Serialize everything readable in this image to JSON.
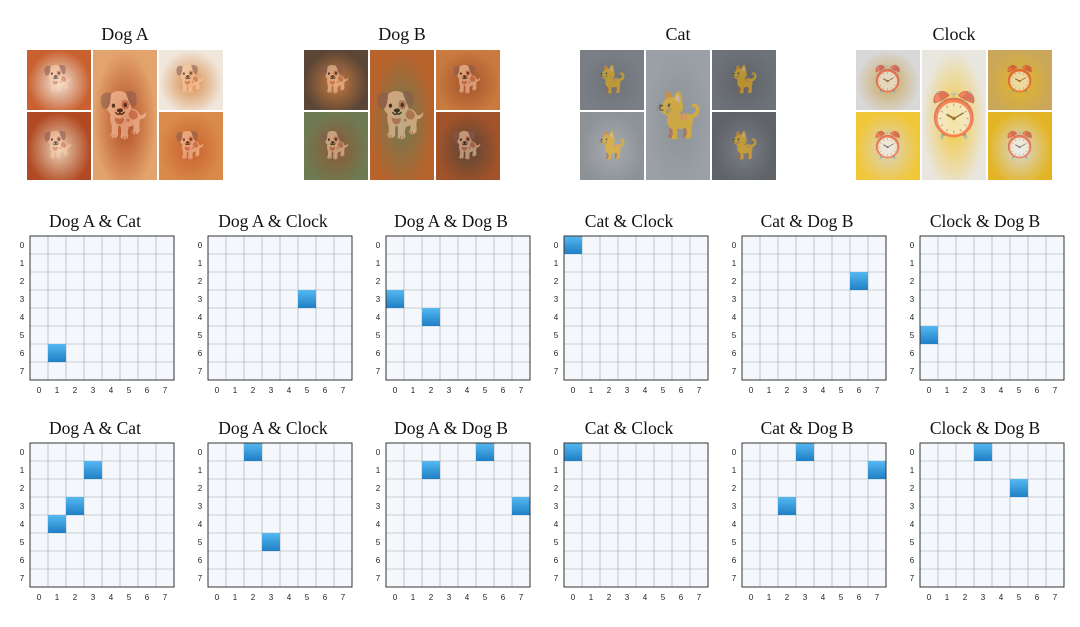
{
  "concepts": [
    {
      "title": "Dog A",
      "icon": "dog-photo-icon",
      "palette": [
        "#c8602f",
        "#e3a36c",
        "#f0e7dc",
        "#b14a22",
        "#d98b4a",
        "#e9d2b8"
      ]
    },
    {
      "title": "Dog B",
      "icon": "dog-photo-icon",
      "palette": [
        "#5a4536",
        "#b8632c",
        "#c97a3f",
        "#6e7a52",
        "#a2532a",
        "#8b5a37"
      ]
    },
    {
      "title": "Cat",
      "icon": "cat-photo-icon",
      "palette": [
        "#7a7f86",
        "#9aa0a6",
        "#6d7278",
        "#8d9296",
        "#5f6368",
        "#a7abb0"
      ]
    },
    {
      "title": "Clock",
      "icon": "clock-photo-icon",
      "palette": [
        "#d8d8d8",
        "#e9e6df",
        "#caa75a",
        "#f1c73a",
        "#e3b526",
        "#d9d2c4"
      ]
    }
  ],
  "grid": {
    "size": 8,
    "ticks": [
      "0",
      "1",
      "2",
      "3",
      "4",
      "5",
      "6",
      "7"
    ]
  },
  "rows": [
    [
      {
        "title": "Dog A & Cat",
        "cells": [
          [
            1,
            6
          ]
        ]
      },
      {
        "title": "Dog A & Clock",
        "cells": [
          [
            5,
            3
          ]
        ]
      },
      {
        "title": "Dog A & Dog B",
        "cells": [
          [
            0,
            3
          ],
          [
            2,
            4
          ]
        ]
      },
      {
        "title": "Cat & Clock",
        "cells": [
          [
            0,
            0
          ]
        ]
      },
      {
        "title": "Cat & Dog B",
        "cells": [
          [
            6,
            2
          ]
        ]
      },
      {
        "title": "Clock & Dog B",
        "cells": [
          [
            0,
            5
          ]
        ]
      }
    ],
    [
      {
        "title": "Dog A & Cat",
        "cells": [
          [
            3,
            1
          ],
          [
            2,
            3
          ],
          [
            1,
            4
          ]
        ]
      },
      {
        "title": "Dog A & Clock",
        "cells": [
          [
            2,
            0
          ],
          [
            3,
            5
          ]
        ]
      },
      {
        "title": "Dog A & Dog B",
        "cells": [
          [
            2,
            1
          ],
          [
            5,
            0
          ],
          [
            7,
            3
          ]
        ]
      },
      {
        "title": "Cat & Clock",
        "cells": [
          [
            0,
            0
          ]
        ]
      },
      {
        "title": "Cat & Dog B",
        "cells": [
          [
            3,
            0
          ],
          [
            2,
            3
          ],
          [
            7,
            1
          ]
        ]
      },
      {
        "title": "Clock & Dog B",
        "cells": [
          [
            3,
            0
          ],
          [
            5,
            2
          ]
        ]
      }
    ]
  ],
  "colors": {
    "cell_top": "#56b8f0",
    "cell_bottom": "#1f7fc6",
    "grid_bg": "#f4f8fc",
    "grid_line": "#9aa4ad",
    "frame": "#333333"
  }
}
